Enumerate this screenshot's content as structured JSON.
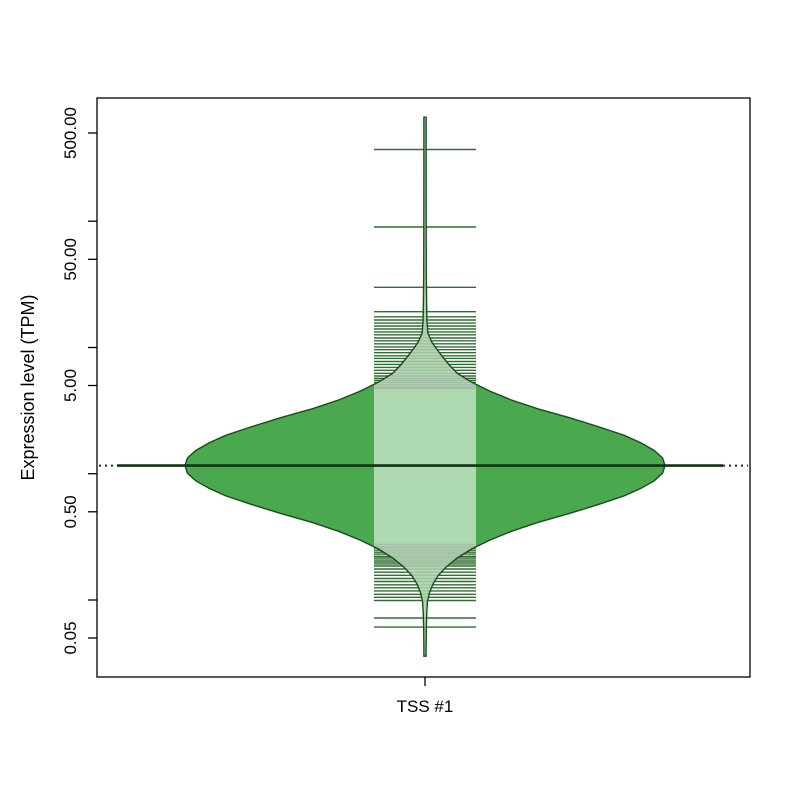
{
  "chart_data": {
    "type": "violin",
    "title": "",
    "categories": [
      "TSS #1"
    ],
    "xlabel": "",
    "ylabel": "Expression level (TPM)",
    "yscale": "log10",
    "ylim": [
      0.025,
      950
    ],
    "grid": false,
    "legend": null,
    "yticks": [
      {
        "value": 500,
        "label": "500.00"
      },
      {
        "value": 50,
        "label": "50.00"
      },
      {
        "value": 5,
        "label": "5.00"
      },
      {
        "value": 0.5,
        "label": "0.50"
      },
      {
        "value": 0.05,
        "label": "0.05"
      }
    ],
    "yticks_minor": [
      100,
      10,
      1,
      0.1
    ],
    "colors": {
      "violin_fill": "#4aa94e",
      "violin_fill_highlight": "#aedbae",
      "violin_outline": "#1c4a1e",
      "rug_line": "#2e6e31",
      "median_line": "#123212",
      "axis": "#000000"
    },
    "series": [
      {
        "name": "TSS #1",
        "median_tpm": 1.16,
        "min_tpm": 0.036,
        "max_tpm": 670,
        "density_profile_log10_offset_vs_halfwidth_fraction": [
          [
            2.76,
            0.0045
          ],
          [
            2.3,
            0.0045
          ],
          [
            1.8,
            0.005
          ],
          [
            1.5,
            0.0055
          ],
          [
            1.3,
            0.0065
          ],
          [
            1.15,
            0.008
          ],
          [
            1.05,
            0.012
          ],
          [
            0.98,
            0.028
          ],
          [
            0.92,
            0.05
          ],
          [
            0.87,
            0.07
          ],
          [
            0.8,
            0.1
          ],
          [
            0.73,
            0.135
          ],
          [
            0.66,
            0.195
          ],
          [
            0.59,
            0.27
          ],
          [
            0.52,
            0.36
          ],
          [
            0.45,
            0.47
          ],
          [
            0.38,
            0.6
          ],
          [
            0.31,
            0.72
          ],
          [
            0.24,
            0.83
          ],
          [
            0.18,
            0.9
          ],
          [
            0.12,
            0.955
          ],
          [
            0.06,
            0.99
          ],
          [
            0.0,
            1.0
          ],
          [
            -0.06,
            0.99
          ],
          [
            -0.12,
            0.955
          ],
          [
            -0.18,
            0.9
          ],
          [
            -0.24,
            0.83
          ],
          [
            -0.31,
            0.72
          ],
          [
            -0.38,
            0.6
          ],
          [
            -0.45,
            0.47
          ],
          [
            -0.52,
            0.36
          ],
          [
            -0.59,
            0.27
          ],
          [
            -0.66,
            0.195
          ],
          [
            -0.73,
            0.135
          ],
          [
            -0.8,
            0.09
          ],
          [
            -0.87,
            0.055
          ],
          [
            -0.94,
            0.033
          ],
          [
            -1.01,
            0.018
          ],
          [
            -1.08,
            0.01
          ],
          [
            -1.18,
            0.007
          ],
          [
            -1.3,
            0.0055
          ],
          [
            -1.45,
            0.0045
          ],
          [
            -1.51,
            0.0045
          ]
        ],
        "rug_values_tpm": [
          370,
          90,
          30,
          19.2,
          17.5,
          16.5,
          15.6,
          14.8,
          14.0,
          13.3,
          12.6,
          11.9,
          11.3,
          10.7,
          10.1,
          9.6,
          9.1,
          8.6,
          8.2,
          7.75,
          7.35,
          6.95,
          6.6,
          6.25,
          5.95,
          5.7,
          5.5,
          5.3,
          5.1,
          4.9,
          4.75,
          0.276,
          0.266,
          0.257,
          0.248,
          0.239,
          0.231,
          0.222,
          0.215,
          0.207,
          0.2,
          0.193,
          0.186,
          0.176,
          0.166,
          0.157,
          0.148,
          0.14,
          0.132,
          0.125,
          0.118,
          0.111,
          0.105,
          0.099,
          0.072,
          0.061
        ]
      }
    ]
  }
}
